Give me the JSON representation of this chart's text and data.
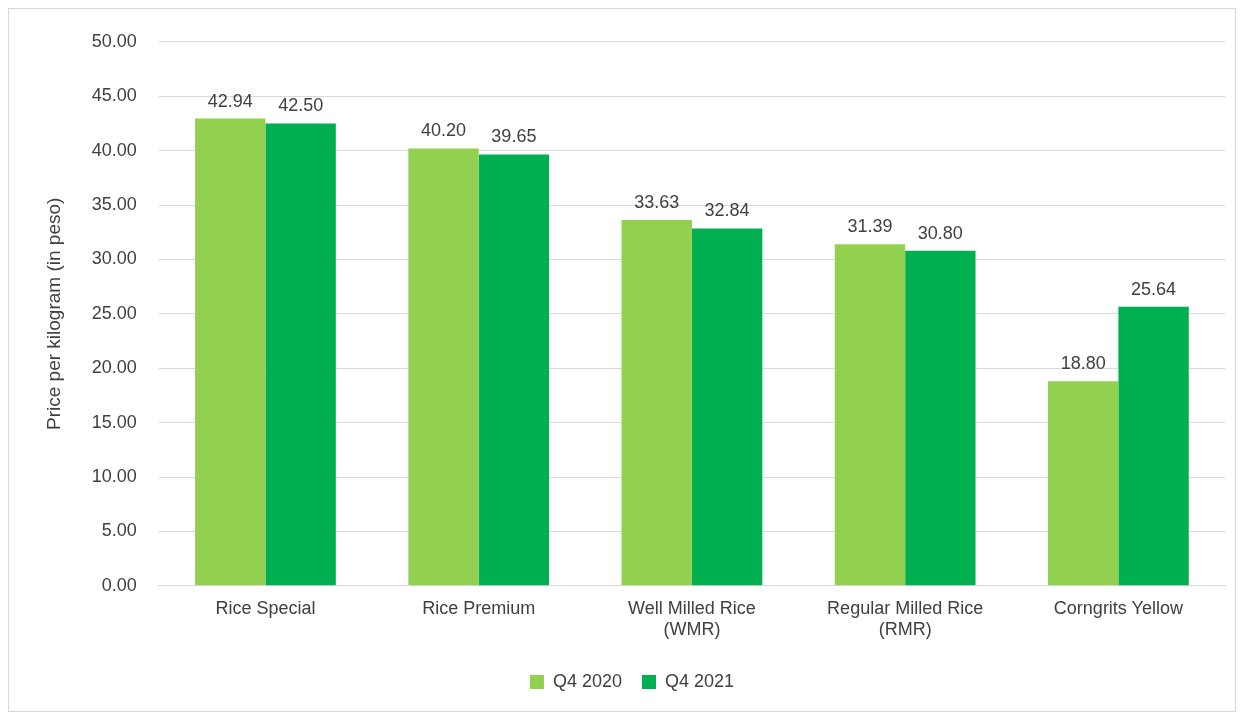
{
  "chart_data": {
    "type": "bar",
    "ylabel": "Price per kilogram (in peso)",
    "categories": [
      "Rice Special",
      "Rice Premium",
      "Well Milled Rice (WMR)",
      "Regular Milled Rice (RMR)",
      "Corngrits Yellow"
    ],
    "series": [
      {
        "name": "Q4 2020",
        "color": "#92d050",
        "values": [
          42.94,
          40.2,
          33.63,
          31.39,
          18.8
        ],
        "value_labels": [
          "42.94",
          "40.20",
          "33.63",
          "31.39",
          "18.80"
        ]
      },
      {
        "name": "Q4 2021",
        "color": "#00b050",
        "values": [
          42.5,
          39.65,
          32.84,
          30.8,
          25.64
        ],
        "value_labels": [
          "42.50",
          "39.65",
          "32.84",
          "30.80",
          "25.64"
        ]
      }
    ],
    "ylim": [
      0,
      50
    ],
    "yticks": [
      {
        "value": 0,
        "label": "0.00"
      },
      {
        "value": 5,
        "label": "5.00"
      },
      {
        "value": 10,
        "label": "10.00"
      },
      {
        "value": 15,
        "label": "15.00"
      },
      {
        "value": 20,
        "label": "20.00"
      },
      {
        "value": 25,
        "label": "25.00"
      },
      {
        "value": 30,
        "label": "30.00"
      },
      {
        "value": 35,
        "label": "35.00"
      },
      {
        "value": 40,
        "label": "40.00"
      },
      {
        "value": 45,
        "label": "45.00"
      },
      {
        "value": 50,
        "label": "50.00"
      }
    ],
    "grid": "y",
    "legend": "bottom"
  }
}
